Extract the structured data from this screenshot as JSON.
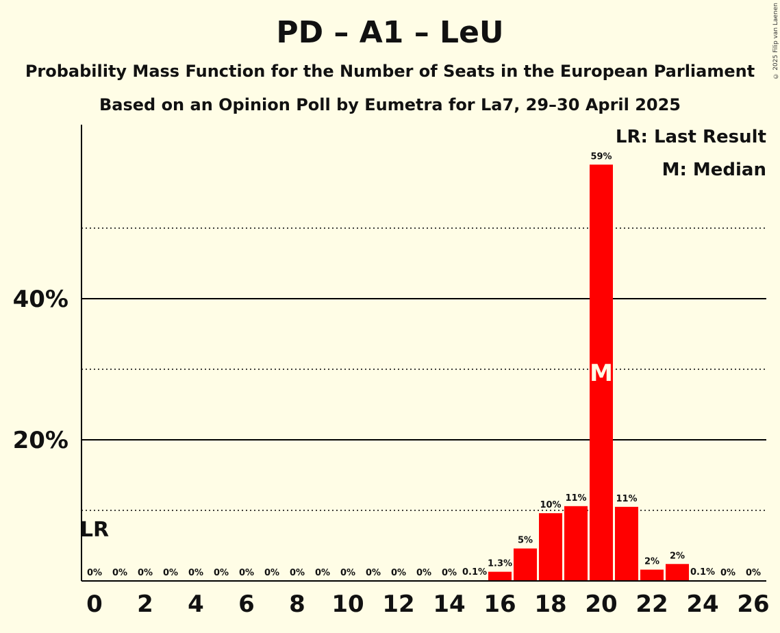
{
  "title": "PD – A1 – LeU",
  "subtitle1": "Probability Mass Function for the Number of Seats in the European Parliament",
  "subtitle2": "Based on an Opinion Poll by Eumetra for La7, 29–30 April 2025",
  "copyright": "© 2025 Filip van Laenen",
  "legend": {
    "lr": "LR: Last Result",
    "m": "M: Median"
  },
  "colors": {
    "background": "#fffde6",
    "bar": "#ff0000",
    "axis": "#000000"
  },
  "chart_data": {
    "type": "bar",
    "title": "PD – A1 – LeU",
    "xlabel": "",
    "ylabel": "",
    "categories": [
      0,
      1,
      2,
      3,
      4,
      5,
      6,
      7,
      8,
      9,
      10,
      11,
      12,
      13,
      14,
      15,
      16,
      17,
      18,
      19,
      20,
      21,
      22,
      23,
      24,
      25,
      26
    ],
    "values": [
      0,
      0,
      0,
      0,
      0,
      0,
      0,
      0,
      0,
      0,
      0,
      0,
      0,
      0,
      0,
      0.1,
      1.3,
      4.6,
      9.6,
      10.6,
      59.0,
      10.5,
      1.6,
      2.4,
      0.1,
      0,
      0
    ],
    "value_labels": [
      "0%",
      "0%",
      "0%",
      "0%",
      "0%",
      "0%",
      "0%",
      "0%",
      "0%",
      "0%",
      "0%",
      "0%",
      "0%",
      "0%",
      "0%",
      "0.1%",
      "1.3%",
      "5%",
      "10%",
      "11%",
      "59%",
      "11%",
      "2%",
      "2%",
      "0.1%",
      "0%",
      "0%"
    ],
    "x_tick_labels": [
      "0",
      "2",
      "4",
      "6",
      "8",
      "10",
      "12",
      "14",
      "16",
      "18",
      "20",
      "22",
      "24",
      "26"
    ],
    "y_ticks": [
      {
        "value": 10,
        "label": "",
        "style": "dotted"
      },
      {
        "value": 20,
        "label": "20%",
        "style": "solid"
      },
      {
        "value": 30,
        "label": "",
        "style": "dotted"
      },
      {
        "value": 40,
        "label": "40%",
        "style": "solid"
      },
      {
        "value": 50,
        "label": "",
        "style": "dotted"
      }
    ],
    "ylim": [
      0,
      64.5
    ],
    "median_seat": 20,
    "median_label": "M",
    "last_result_seat": 0,
    "last_result_label": "LR",
    "legend_position": "top-right"
  }
}
